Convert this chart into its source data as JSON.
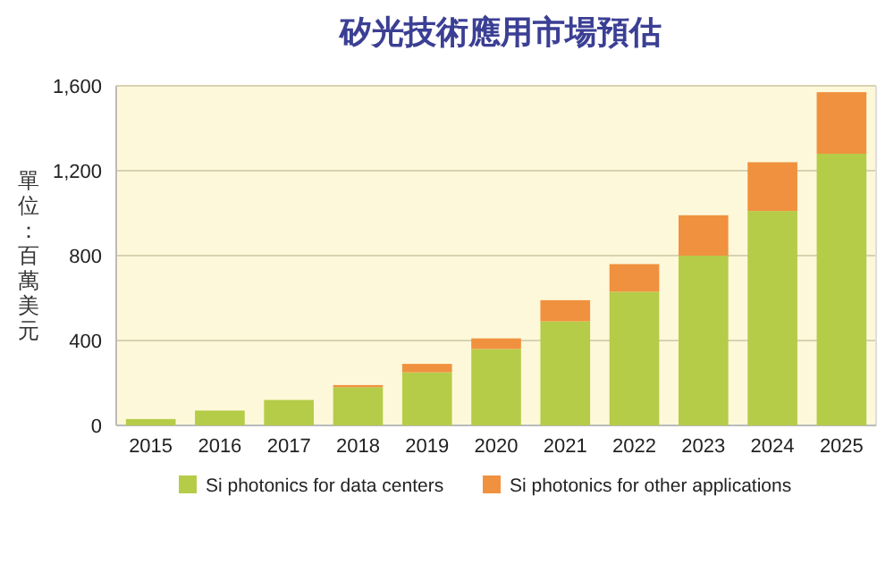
{
  "chart_data": {
    "type": "bar",
    "title": "矽光技術應用市場預估",
    "ylabel": "單位：百萬美元",
    "categories": [
      "2015",
      "2016",
      "2017",
      "2018",
      "2019",
      "2020",
      "2021",
      "2022",
      "2023",
      "2024",
      "2025"
    ],
    "stacked": true,
    "series": [
      {
        "name": "Si photonics for data centers",
        "color": "#b5cc48",
        "values": [
          30,
          70,
          120,
          180,
          250,
          360,
          490,
          630,
          800,
          1010,
          1280
        ]
      },
      {
        "name": "Si photonics for other applications",
        "color": "#f0913f",
        "values": [
          0,
          0,
          0,
          10,
          40,
          50,
          100,
          130,
          190,
          230,
          290
        ]
      }
    ],
    "ylim": [
      0,
      1600
    ],
    "yticks": [
      0,
      {
        "value": 400,
        "label": "400"
      },
      {
        "value": 800,
        "label": "800"
      },
      {
        "value": 1200,
        "label": "1,200"
      },
      {
        "value": 1600,
        "label": "1,600"
      }
    ],
    "grid": "y",
    "legend": "bottom"
  }
}
